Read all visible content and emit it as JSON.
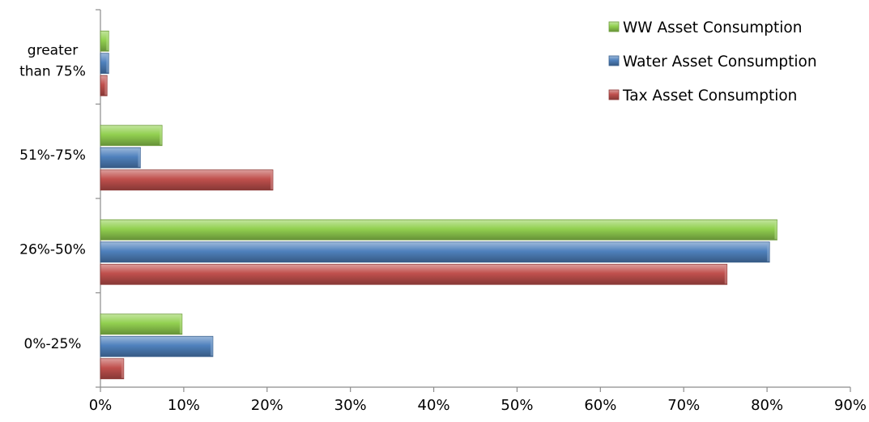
{
  "chart_data": {
    "type": "bar",
    "orientation": "horizontal",
    "title": "",
    "xlabel": "",
    "ylabel": "",
    "xlim": [
      0,
      90
    ],
    "x_ticks": [
      "0%",
      "10%",
      "20%",
      "30%",
      "40%",
      "50%",
      "60%",
      "70%",
      "80%",
      "90%"
    ],
    "categories": [
      "0%-25%",
      "26%-50%",
      "51%-75%",
      "greater than 75%"
    ],
    "category_label_lines": [
      [
        "0%-25%"
      ],
      [
        "26%-50%"
      ],
      [
        "51%-75%"
      ],
      [
        "greater",
        "than 75%"
      ]
    ],
    "series": [
      {
        "name": "WW Asset Consumption",
        "color": "#92d050",
        "values": [
          9.8,
          81.2,
          7.4,
          1.0
        ]
      },
      {
        "name": "Water Asset Consumption",
        "color": "#4f81bd",
        "values": [
          13.5,
          80.3,
          4.8,
          1.0
        ]
      },
      {
        "name": "Tax Asset Consumption",
        "color": "#c0504d",
        "values": [
          2.8,
          75.2,
          20.7,
          0.8
        ]
      }
    ],
    "legend_position": "top-right",
    "grid": false
  }
}
